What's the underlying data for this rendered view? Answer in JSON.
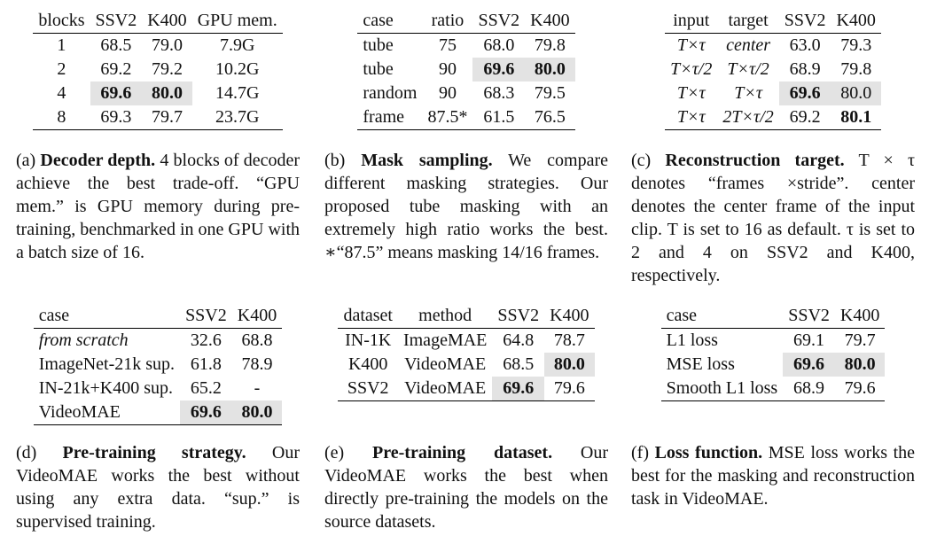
{
  "tables": [
    {
      "header": [
        "blocks",
        "SSV2",
        "K400",
        "GPU mem."
      ],
      "rows": [
        [
          "1",
          "68.5",
          "79.0",
          "7.9G"
        ],
        [
          "2",
          "69.2",
          "79.2",
          "10.2G"
        ],
        [
          "4",
          "69.6",
          "80.0",
          "14.7G"
        ],
        [
          "8",
          "69.3",
          "79.7",
          "23.7G"
        ]
      ],
      "highlight": [
        [
          2,
          1
        ],
        [
          2,
          2
        ]
      ],
      "bold": [
        [
          2,
          1
        ],
        [
          2,
          2
        ]
      ],
      "italic": [],
      "caption": {
        "label": "(a)",
        "title": "Decoder depth.",
        "text": "4 blocks of decoder achieve the best trade-off. “GPU mem.” is GPU memory during pre-training, benchmarked in one GPU with a batch size of 16."
      }
    },
    {
      "header": [
        "case",
        "ratio",
        "SSV2",
        "K400"
      ],
      "rows": [
        [
          "tube",
          "75",
          "68.0",
          "79.8"
        ],
        [
          "tube",
          "90",
          "69.6",
          "80.0"
        ],
        [
          "random",
          "90",
          "68.3",
          "79.5"
        ],
        [
          "frame",
          "87.5*",
          "61.5",
          "76.5"
        ]
      ],
      "highlight": [
        [
          1,
          2
        ],
        [
          1,
          3
        ]
      ],
      "bold": [
        [
          1,
          2
        ],
        [
          1,
          3
        ]
      ],
      "italic": [],
      "caption": {
        "label": "(b)",
        "title": "Mask sampling.",
        "text": "We compare different masking strategies. Our proposed tube masking with an extremely high ratio works the best. ∗“87.5” means masking 14/16 frames."
      }
    },
    {
      "header": [
        "input",
        "target",
        "SSV2",
        "K400"
      ],
      "rows": [
        [
          "T×τ",
          "center",
          "63.0",
          "79.3"
        ],
        [
          "T×τ/2",
          "T×τ/2",
          "68.9",
          "79.8"
        ],
        [
          "T×τ",
          "T×τ",
          "69.6",
          "80.0"
        ],
        [
          "T×τ",
          "2T×τ/2",
          "69.2",
          "80.1"
        ]
      ],
      "highlight": [
        [
          2,
          2
        ],
        [
          2,
          3
        ]
      ],
      "bold": [
        [
          2,
          2
        ],
        [
          3,
          3
        ]
      ],
      "italic": [
        [
          0,
          0
        ],
        [
          0,
          1
        ],
        [
          1,
          0
        ],
        [
          1,
          1
        ],
        [
          2,
          0
        ],
        [
          2,
          1
        ],
        [
          3,
          0
        ],
        [
          3,
          1
        ]
      ],
      "caption": {
        "label": "(c)",
        "title": "Reconstruction target.",
        "text": "T × τ denotes “frames ×stride”. center denotes the center frame of the input clip. T is set to 16 as default. τ is set to 2 and 4 on SSV2 and K400, respectively."
      }
    },
    {
      "header": [
        "case",
        "SSV2",
        "K400"
      ],
      "rows": [
        [
          "from scratch",
          "32.6",
          "68.8"
        ],
        [
          "ImageNet-21k sup.",
          "61.8",
          "78.9"
        ],
        [
          "IN-21k+K400 sup.",
          "65.2",
          "-"
        ],
        [
          "VideoMAE",
          "69.6",
          "80.0"
        ]
      ],
      "highlight": [
        [
          3,
          1
        ],
        [
          3,
          2
        ]
      ],
      "bold": [
        [
          3,
          1
        ],
        [
          3,
          2
        ]
      ],
      "italic": [
        [
          0,
          0
        ]
      ],
      "caption": {
        "label": "(d)",
        "title": "Pre-training strategy.",
        "text": "Our VideoMAE works the best without using any extra data. “sup.” is supervised training."
      }
    },
    {
      "header": [
        "dataset",
        "method",
        "SSV2",
        "K400"
      ],
      "rows": [
        [
          "IN-1K",
          "ImageMAE",
          "64.8",
          "78.7"
        ],
        [
          "K400",
          "VideoMAE",
          "68.5",
          "80.0"
        ],
        [
          "SSV2",
          "VideoMAE",
          "69.6",
          "79.6"
        ]
      ],
      "highlight": [
        [
          1,
          3
        ],
        [
          2,
          2
        ]
      ],
      "bold": [
        [
          1,
          3
        ],
        [
          2,
          2
        ]
      ],
      "italic": [],
      "caption": {
        "label": "(e)",
        "title": "Pre-training dataset.",
        "text": "Our VideoMAE works the best when directly pre-training the models on the source datasets."
      }
    },
    {
      "header": [
        "case",
        "SSV2",
        "K400"
      ],
      "rows": [
        [
          "L1 loss",
          "69.1",
          "79.7"
        ],
        [
          "MSE loss",
          "69.6",
          "80.0"
        ],
        [
          "Smooth L1 loss",
          "68.9",
          "79.6"
        ]
      ],
      "highlight": [
        [
          1,
          1
        ],
        [
          1,
          2
        ]
      ],
      "bold": [
        [
          1,
          1
        ],
        [
          1,
          2
        ]
      ],
      "italic": [],
      "caption": {
        "label": "(f)",
        "title": "Loss function.",
        "text": "MSE loss works the best for the masking and reconstruction task in VideoMAE."
      }
    }
  ]
}
